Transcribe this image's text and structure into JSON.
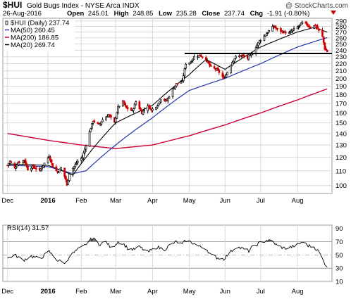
{
  "header": {
    "symbol": "$HUI",
    "name": "Gold Bugs Index - NYSE Arca INDX",
    "brand": "@ StockCharts.com",
    "date": "26-Aug-2016",
    "open_label": "Open",
    "open": "245.01",
    "high_label": "High",
    "high": "248.85",
    "low_label": "Low",
    "low": "235.28",
    "close_label": "Close",
    "close": "237.74",
    "chg_label": "Chg",
    "chg": "-1.91 (-0.80%)"
  },
  "colors": {
    "price_up": "#000000",
    "price_down": "#cc0000",
    "ma50": "#2233aa",
    "ma200": "#cc0033",
    "ma20": "#000000",
    "rsi_line": "#000000",
    "rsi_fill": "#777777",
    "grid": "#d8d8d8"
  },
  "chart_data": [
    {
      "type": "candlestick",
      "title": "$HUI Gold Bugs Index - NYSE Arca INDX",
      "x_tick_labels": [
        "Dec",
        "2016",
        "Feb",
        "Mar",
        "Apr",
        "May",
        "Jun",
        "Jul",
        "Aug"
      ],
      "y_tick_labels": [
        "100",
        "110",
        "120",
        "130",
        "140",
        "150",
        "160",
        "170",
        "180",
        "190",
        "200",
        "210",
        "220",
        "230",
        "240",
        "250",
        "260",
        "270",
        "280",
        "290"
      ],
      "y_scale": "log",
      "ylim": [
        95,
        295
      ],
      "grid": true,
      "legend_position": "top-left",
      "legend": [
        {
          "label": "$HUI (Daily) 237.74"
        },
        {
          "label": "MA(50) 260.45"
        },
        {
          "label": "MA(200) 186.85"
        },
        {
          "label": "MA(20) 269.74"
        }
      ],
      "horizontal_line": 235,
      "price_path": [
        [
          "2015-12-01",
          114
        ],
        [
          "2015-12-03",
          117
        ],
        [
          "2015-12-07",
          112
        ],
        [
          "2015-12-10",
          116
        ],
        [
          "2015-12-15",
          118
        ],
        [
          "2015-12-18",
          111
        ],
        [
          "2015-12-22",
          113
        ],
        [
          "2015-12-28",
          110
        ],
        [
          "2016-01-05",
          121
        ],
        [
          "2016-01-08",
          113
        ],
        [
          "2016-01-12",
          109
        ],
        [
          "2016-01-15",
          112
        ],
        [
          "2016-01-19",
          104
        ],
        [
          "2016-01-20",
          100
        ],
        [
          "2016-01-22",
          108
        ],
        [
          "2016-01-26",
          113
        ],
        [
          "2016-01-29",
          117
        ],
        [
          "2016-02-02",
          120
        ],
        [
          "2016-02-05",
          130
        ],
        [
          "2016-02-09",
          145
        ],
        [
          "2016-02-11",
          152
        ],
        [
          "2016-02-16",
          148
        ],
        [
          "2016-02-19",
          153
        ],
        [
          "2016-02-24",
          158
        ],
        [
          "2016-02-29",
          150
        ],
        [
          "2016-03-03",
          166
        ],
        [
          "2016-03-07",
          172
        ],
        [
          "2016-03-10",
          165
        ],
        [
          "2016-03-15",
          162
        ],
        [
          "2016-03-18",
          172
        ],
        [
          "2016-03-23",
          160
        ],
        [
          "2016-03-28",
          168
        ],
        [
          "2016-03-31",
          163
        ],
        [
          "2016-04-05",
          168
        ],
        [
          "2016-04-08",
          175
        ],
        [
          "2016-04-13",
          173
        ],
        [
          "2016-04-18",
          186
        ],
        [
          "2016-04-21",
          193
        ],
        [
          "2016-04-26",
          196
        ],
        [
          "2016-04-29",
          220
        ],
        [
          "2016-05-03",
          222
        ],
        [
          "2016-05-06",
          230
        ],
        [
          "2016-05-11",
          232
        ],
        [
          "2016-05-16",
          226
        ],
        [
          "2016-05-20",
          215
        ],
        [
          "2016-05-25",
          212
        ],
        [
          "2016-05-31",
          200
        ],
        [
          "2016-06-02",
          205
        ],
        [
          "2016-06-07",
          222
        ],
        [
          "2016-06-10",
          230
        ],
        [
          "2016-06-15",
          232
        ],
        [
          "2016-06-20",
          228
        ],
        [
          "2016-06-24",
          235
        ],
        [
          "2016-06-30",
          255
        ],
        [
          "2016-07-05",
          265
        ],
        [
          "2016-07-08",
          272
        ],
        [
          "2016-07-12",
          280
        ],
        [
          "2016-07-15",
          274
        ],
        [
          "2016-07-20",
          270
        ],
        [
          "2016-07-25",
          268
        ],
        [
          "2016-07-29",
          275
        ],
        [
          "2016-08-02",
          280
        ],
        [
          "2016-08-05",
          287
        ],
        [
          "2016-08-09",
          283
        ],
        [
          "2016-08-12",
          278
        ],
        [
          "2016-08-16",
          282
        ],
        [
          "2016-08-19",
          272
        ],
        [
          "2016-08-22",
          262
        ],
        [
          "2016-08-24",
          242
        ],
        [
          "2016-08-26",
          237.74
        ]
      ],
      "series": [
        {
          "name": "MA(50)",
          "points": [
            [
              "2015-12-01",
              114
            ],
            [
              "2016-01-04",
              113
            ],
            [
              "2016-01-25",
              108
            ],
            [
              "2016-02-05",
              110
            ],
            [
              "2016-03-01",
              130
            ],
            [
              "2016-04-01",
              155
            ],
            [
              "2016-05-02",
              185
            ],
            [
              "2016-06-01",
              200
            ],
            [
              "2016-07-01",
              220
            ],
            [
              "2016-08-01",
              245
            ],
            [
              "2016-08-26",
              260.45
            ]
          ]
        },
        {
          "name": "MA(200)",
          "points": [
            [
              "2015-12-01",
              140
            ],
            [
              "2016-01-04",
              134
            ],
            [
              "2016-02-01",
              130
            ],
            [
              "2016-03-01",
              127
            ],
            [
              "2016-04-01",
              130
            ],
            [
              "2016-05-02",
              138
            ],
            [
              "2016-06-01",
              148
            ],
            [
              "2016-07-01",
              160
            ],
            [
              "2016-08-01",
              174
            ],
            [
              "2016-08-26",
              186.85
            ]
          ]
        },
        {
          "name": "MA(20)",
          "points": [
            [
              "2015-12-01",
              115
            ],
            [
              "2016-01-04",
              114
            ],
            [
              "2016-01-25",
              107
            ],
            [
              "2016-02-05",
              120
            ],
            [
              "2016-03-01",
              150
            ],
            [
              "2016-04-01",
              168
            ],
            [
              "2016-05-02",
              205
            ],
            [
              "2016-05-16",
              226
            ],
            [
              "2016-06-01",
              212
            ],
            [
              "2016-07-01",
              245
            ],
            [
              "2016-08-01",
              270
            ],
            [
              "2016-08-15",
              278
            ],
            [
              "2016-08-26",
              269.74
            ]
          ]
        }
      ]
    },
    {
      "type": "line",
      "title": "RSI(14) 31.57",
      "series_name": "RSI(14)",
      "last_value": "31.57",
      "y_tick_labels": [
        "10",
        "30",
        "50",
        "70",
        "90"
      ],
      "ylim": [
        10,
        95
      ],
      "reference_lines": [
        30,
        50,
        70
      ],
      "x_tick_labels": [
        "Dec",
        "2016",
        "Feb",
        "Mar",
        "Apr",
        "May",
        "Jun",
        "Jul",
        "Aug"
      ],
      "points": [
        [
          "2015-12-01",
          45
        ],
        [
          "2015-12-07",
          50
        ],
        [
          "2015-12-14",
          42
        ],
        [
          "2015-12-21",
          48
        ],
        [
          "2015-12-28",
          44
        ],
        [
          "2016-01-05",
          55
        ],
        [
          "2016-01-12",
          42
        ],
        [
          "2016-01-19",
          38
        ],
        [
          "2016-01-22",
          48
        ],
        [
          "2016-01-29",
          58
        ],
        [
          "2016-02-03",
          63
        ],
        [
          "2016-02-08",
          72
        ],
        [
          "2016-02-11",
          75
        ],
        [
          "2016-02-16",
          66
        ],
        [
          "2016-02-22",
          70
        ],
        [
          "2016-02-26",
          60
        ],
        [
          "2016-03-03",
          70
        ],
        [
          "2016-03-08",
          66
        ],
        [
          "2016-03-11",
          60
        ],
        [
          "2016-03-16",
          58
        ],
        [
          "2016-03-21",
          62
        ],
        [
          "2016-03-28",
          54
        ],
        [
          "2016-03-31",
          57
        ],
        [
          "2016-04-05",
          62
        ],
        [
          "2016-04-11",
          58
        ],
        [
          "2016-04-15",
          64
        ],
        [
          "2016-04-21",
          70
        ],
        [
          "2016-04-26",
          66
        ],
        [
          "2016-04-29",
          72
        ],
        [
          "2016-05-05",
          68
        ],
        [
          "2016-05-11",
          62
        ],
        [
          "2016-05-16",
          60
        ],
        [
          "2016-05-20",
          50
        ],
        [
          "2016-05-25",
          46
        ],
        [
          "2016-05-31",
          44
        ],
        [
          "2016-06-06",
          55
        ],
        [
          "2016-06-10",
          62
        ],
        [
          "2016-06-15",
          60
        ],
        [
          "2016-06-21",
          56
        ],
        [
          "2016-06-24",
          62
        ],
        [
          "2016-06-30",
          68
        ],
        [
          "2016-07-06",
          72
        ],
        [
          "2016-07-11",
          70
        ],
        [
          "2016-07-15",
          64
        ],
        [
          "2016-07-21",
          60
        ],
        [
          "2016-07-27",
          62
        ],
        [
          "2016-08-02",
          66
        ],
        [
          "2016-08-05",
          70
        ],
        [
          "2016-08-10",
          64
        ],
        [
          "2016-08-15",
          62
        ],
        [
          "2016-08-19",
          55
        ],
        [
          "2016-08-23",
          40
        ],
        [
          "2016-08-26",
          31.57
        ]
      ]
    }
  ]
}
